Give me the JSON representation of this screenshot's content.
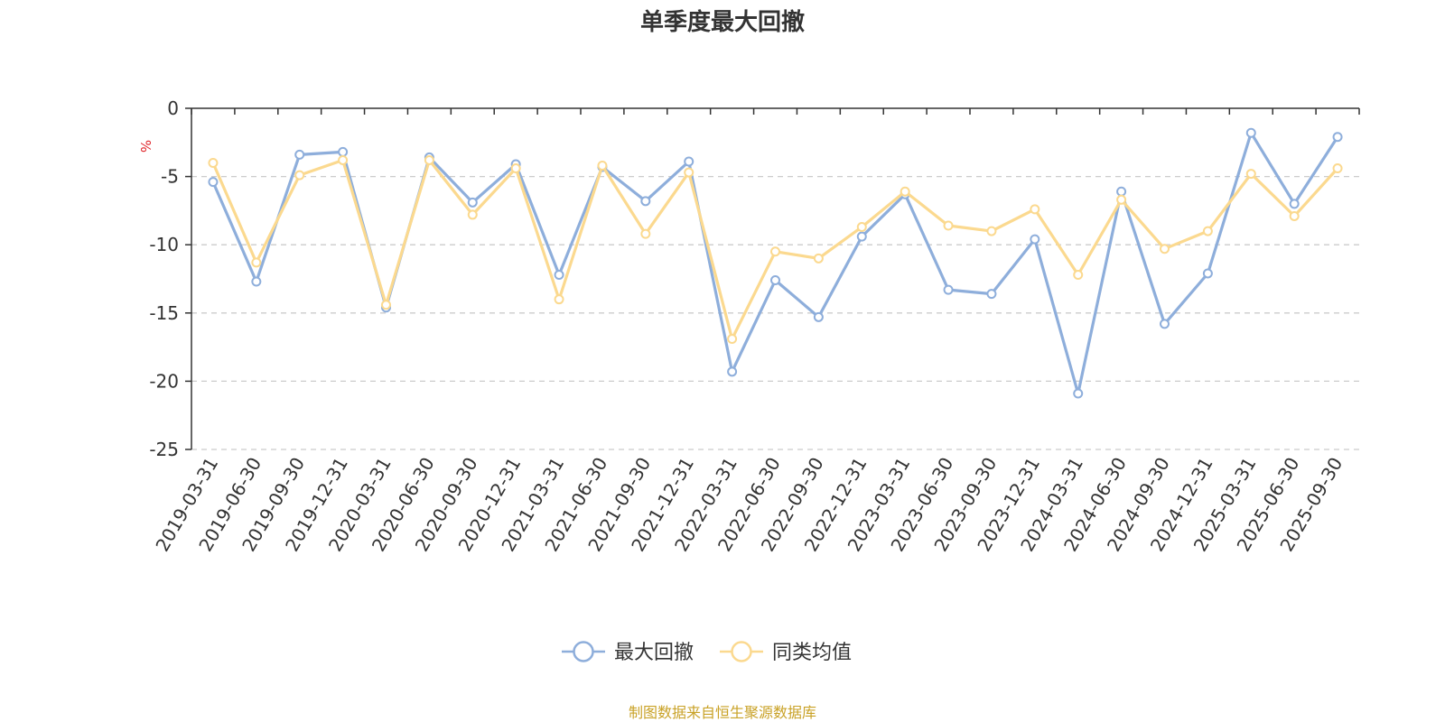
{
  "colors": {
    "series1": "#8eaedb",
    "series2": "#fbd98f",
    "source": "#c9a227",
    "unit": "#e0262b",
    "grid": "#cccccc",
    "axis": "#333333"
  },
  "chart_data": {
    "type": "line",
    "title": "单季度最大回撤",
    "ylabel": "%",
    "ylim": [
      -25,
      0
    ],
    "yticks": [
      0,
      -5,
      -10,
      -15,
      -20,
      -25
    ],
    "grid": "horizontal-dashed",
    "legend_position": "bottom-center",
    "categories": [
      "2019-03-31",
      "2019-06-30",
      "2019-09-30",
      "2019-12-31",
      "2020-03-31",
      "2020-06-30",
      "2020-09-30",
      "2020-12-31",
      "2021-03-31",
      "2021-06-30",
      "2021-09-30",
      "2021-12-31",
      "2022-03-31",
      "2022-06-30",
      "2022-09-30",
      "2022-12-31",
      "2023-03-31",
      "2023-06-30",
      "2023-09-30",
      "2023-12-31",
      "2024-03-31",
      "2024-06-30",
      "2024-09-30",
      "2024-12-31",
      "2025-03-31",
      "2025-06-30",
      "2025-09-30"
    ],
    "series": [
      {
        "name": "最大回撤",
        "values": [
          -5.4,
          -12.7,
          -3.4,
          -3.2,
          -14.6,
          -3.6,
          -6.9,
          -4.1,
          -12.2,
          -4.3,
          -6.8,
          -3.9,
          -19.3,
          -12.6,
          -15.3,
          -9.4,
          -6.3,
          -13.3,
          -13.6,
          -9.6,
          -20.9,
          -6.1,
          -15.8,
          -12.1,
          -1.8,
          -7.0,
          -2.1
        ]
      },
      {
        "name": "同类均值",
        "values": [
          -4.0,
          -11.3,
          -4.9,
          -3.8,
          -14.4,
          -3.8,
          -7.8,
          -4.4,
          -14.0,
          -4.2,
          -9.2,
          -4.7,
          -16.9,
          -10.5,
          -11.0,
          -8.7,
          -6.1,
          -8.6,
          -9.0,
          -7.4,
          -12.2,
          -6.7,
          -10.3,
          -9.0,
          -4.8,
          -7.9,
          -4.4
        ]
      }
    ]
  },
  "source_note": "制图数据来自恒生聚源数据库"
}
